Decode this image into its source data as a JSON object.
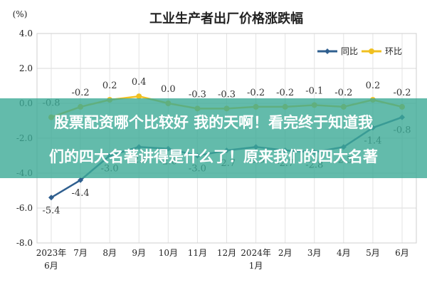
{
  "chart_data": {
    "type": "line",
    "title": "工业生产者出厂价格涨跌幅",
    "unit_label": "(%)",
    "categories": [
      "2023年\n6月",
      "7月",
      "8月",
      "9月",
      "10月",
      "11月",
      "12月",
      "2024年\n1月",
      "2月",
      "3月",
      "4月",
      "5月",
      "6月"
    ],
    "ylim": [
      -8.0,
      4.0
    ],
    "yticks": [
      "4.0",
      "2.0",
      "0.0",
      "-2.0",
      "-4.0",
      "-6.0",
      "-8.0"
    ],
    "grid": true,
    "legend_position": "top-right",
    "series": [
      {
        "name": "同比",
        "color": "#2f5f8f",
        "values": [
          -5.4,
          -4.4,
          -3.0,
          -2.5,
          -2.6,
          -3.0,
          -2.7,
          -2.5,
          -2.7,
          -2.8,
          -2.5,
          -1.4,
          -0.8
        ],
        "labels": [
          "-5.4",
          "-4.4",
          "-3.0",
          "-2.5",
          "-2.6",
          "-3.0",
          "-2.7",
          "-2.5",
          "-2.7",
          "-2.8",
          "-2.5",
          "-1.4",
          "-0.8"
        ]
      },
      {
        "name": "环比",
        "color": "#f0c020",
        "values": [
          -0.8,
          -0.2,
          0.2,
          0.4,
          0.0,
          -0.3,
          -0.3,
          -0.2,
          -0.2,
          -0.1,
          -0.2,
          0.2,
          -0.2
        ],
        "labels": [
          "-0.8",
          "-0.2",
          "0.2",
          "0.4",
          "0.0",
          "-0.3",
          "-0.3",
          "-0.2",
          "-0.2",
          "-0.1",
          "-0.2",
          "0.2",
          "-0.2"
        ]
      }
    ]
  },
  "overlay": {
    "line1": "股票配资哪个比较好 我的天啊！看完终于知道我",
    "line2": "们的四大名著讲得是什么了！原来我们的四大名著"
  }
}
